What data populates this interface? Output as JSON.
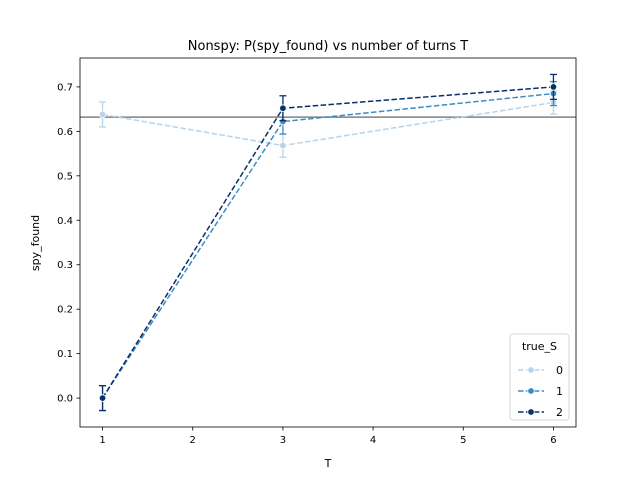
{
  "chart_data": {
    "type": "line",
    "title": "Nonspy: P(spy_found) vs number of turns T",
    "xlabel": "T",
    "ylabel": "spy_found",
    "xlim": [
      0.75,
      6.25
    ],
    "ylim": [
      -0.065,
      0.765
    ],
    "xticks": [
      "1",
      "2",
      "3",
      "4",
      "5",
      "6"
    ],
    "yticks": [
      "0.0",
      "0.1",
      "0.2",
      "0.3",
      "0.4",
      "0.5",
      "0.6",
      "0.7"
    ],
    "x": [
      1,
      3,
      6
    ],
    "reference_line": {
      "y": 0.632,
      "color": "#808080"
    },
    "legend": {
      "title": "true_S",
      "placement": "lower-right"
    },
    "series": [
      {
        "name": "0",
        "color": "#b7d4ea",
        "values": [
          0.638,
          0.568,
          0.665
        ],
        "err": [
          0.028,
          0.026,
          0.026
        ]
      },
      {
        "name": "1",
        "color": "#3c8cc3",
        "values": [
          0.0,
          0.622,
          0.685
        ],
        "err": [
          0.028,
          0.028,
          0.027
        ]
      },
      {
        "name": "2",
        "color": "#08306b",
        "values": [
          0.0,
          0.652,
          0.7
        ],
        "err": [
          0.028,
          0.028,
          0.028
        ]
      }
    ]
  }
}
